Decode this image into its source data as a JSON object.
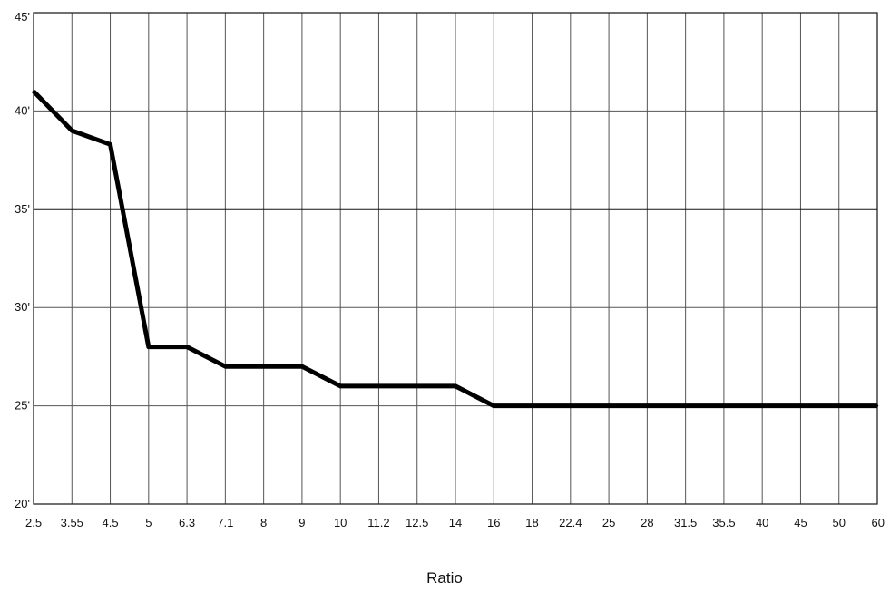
{
  "chart_data": {
    "type": "line",
    "title": "",
    "xlabel": "Ratio",
    "ylabel": "",
    "categories": [
      "2.5",
      "3.55",
      "4.5",
      "5",
      "6.3",
      "7.1",
      "8",
      "9",
      "10",
      "11.2",
      "12.5",
      "14",
      "16",
      "18",
      "22.4",
      "25",
      "28",
      "31.5",
      "35.5",
      "40",
      "45",
      "50",
      "60"
    ],
    "y_tick_labels": [
      "20'",
      "25'",
      "30'",
      "35'",
      "40'",
      "45'"
    ],
    "y_ticks": [
      20,
      25,
      30,
      35,
      40,
      45
    ],
    "ylim": [
      20,
      45
    ],
    "grid": true,
    "legend": "none",
    "reference_line": 35,
    "series": [
      {
        "values": [
          41,
          39,
          38.3,
          28,
          28,
          27,
          27,
          27,
          26,
          26,
          26,
          26,
          25,
          25,
          25,
          25,
          25,
          25,
          25,
          25,
          25,
          25,
          25
        ]
      }
    ],
    "colors": {
      "line": "#000000",
      "grid": "#555555",
      "reference": "#111111"
    }
  }
}
